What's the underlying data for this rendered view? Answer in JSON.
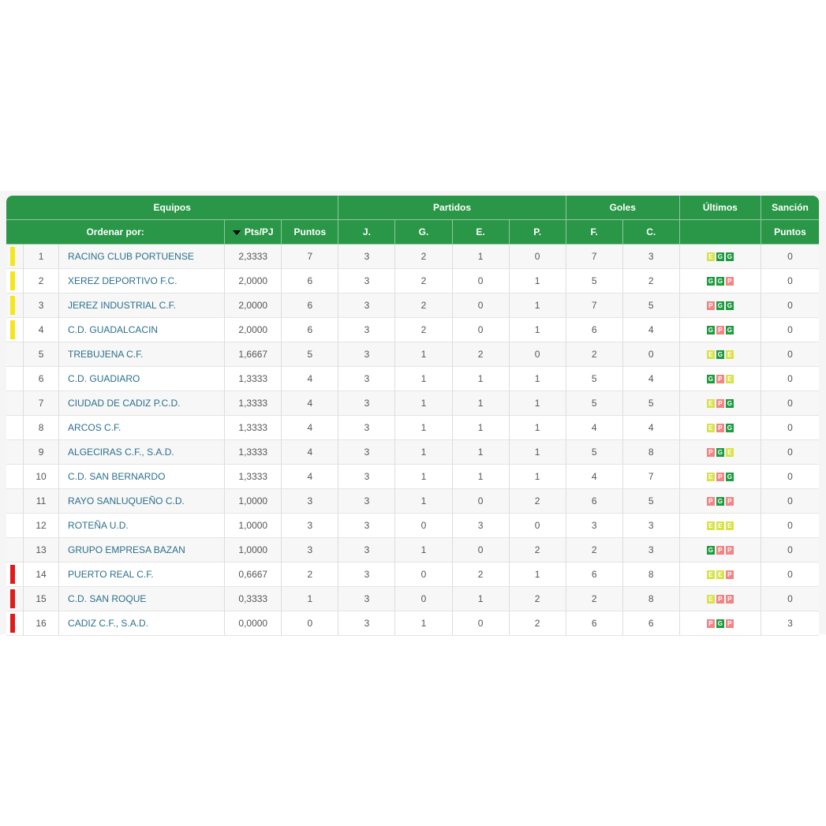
{
  "colors": {
    "header_bg": "#2a9647",
    "team_link": "#2b6f8c",
    "status_top": "#f5e51c",
    "status_bottom": "#e01b1b",
    "result_G": "#1e9a3f",
    "result_E": "#d8e24a",
    "result_P": "#f08585"
  },
  "header": {
    "groups": {
      "equipos": "Equipos",
      "partidos": "Partidos",
      "goles": "Goles",
      "ultimos": "Últimos",
      "sancion": "Sanción"
    },
    "columns": {
      "ordenar": "Ordenar por:",
      "ptspj": "Pts/PJ",
      "puntos": "Puntos",
      "j": "J.",
      "g": "G.",
      "e": "E.",
      "p": "P.",
      "f": "F.",
      "c": "C.",
      "ultimos": "",
      "sancion_puntos": "Puntos"
    },
    "sort_icon": "caret-down-icon"
  },
  "rows": [
    {
      "pos": "1",
      "status": "top",
      "team": "RACING CLUB PORTUENSE",
      "ptspj": "2,3333",
      "pts": "7",
      "j": "3",
      "g": "2",
      "e": "1",
      "p": "0",
      "f": "7",
      "c": "3",
      "form": [
        "E",
        "G",
        "G"
      ],
      "sancion": "0"
    },
    {
      "pos": "2",
      "status": "top",
      "team": "XEREZ DEPORTIVO F.C.",
      "ptspj": "2,0000",
      "pts": "6",
      "j": "3",
      "g": "2",
      "e": "0",
      "p": "1",
      "f": "5",
      "c": "2",
      "form": [
        "G",
        "G",
        "P"
      ],
      "sancion": "0"
    },
    {
      "pos": "3",
      "status": "top",
      "team": "JEREZ INDUSTRIAL C.F.",
      "ptspj": "2,0000",
      "pts": "6",
      "j": "3",
      "g": "2",
      "e": "0",
      "p": "1",
      "f": "7",
      "c": "5",
      "form": [
        "P",
        "G",
        "G"
      ],
      "sancion": "0"
    },
    {
      "pos": "4",
      "status": "top",
      "team": "C.D. GUADALCACIN",
      "ptspj": "2,0000",
      "pts": "6",
      "j": "3",
      "g": "2",
      "e": "0",
      "p": "1",
      "f": "6",
      "c": "4",
      "form": [
        "G",
        "P",
        "G"
      ],
      "sancion": "0"
    },
    {
      "pos": "5",
      "status": "none",
      "team": "TREBUJENA C.F.",
      "ptspj": "1,6667",
      "pts": "5",
      "j": "3",
      "g": "1",
      "e": "2",
      "p": "0",
      "f": "2",
      "c": "0",
      "form": [
        "E",
        "G",
        "E"
      ],
      "sancion": "0"
    },
    {
      "pos": "6",
      "status": "none",
      "team": "C.D. GUADIARO",
      "ptspj": "1,3333",
      "pts": "4",
      "j": "3",
      "g": "1",
      "e": "1",
      "p": "1",
      "f": "5",
      "c": "4",
      "form": [
        "G",
        "P",
        "E"
      ],
      "sancion": "0"
    },
    {
      "pos": "7",
      "status": "none",
      "team": "CIUDAD DE CADIZ P.C.D.",
      "ptspj": "1,3333",
      "pts": "4",
      "j": "3",
      "g": "1",
      "e": "1",
      "p": "1",
      "f": "5",
      "c": "5",
      "form": [
        "E",
        "P",
        "G"
      ],
      "sancion": "0"
    },
    {
      "pos": "8",
      "status": "none",
      "team": "ARCOS C.F.",
      "ptspj": "1,3333",
      "pts": "4",
      "j": "3",
      "g": "1",
      "e": "1",
      "p": "1",
      "f": "4",
      "c": "4",
      "form": [
        "E",
        "P",
        "G"
      ],
      "sancion": "0"
    },
    {
      "pos": "9",
      "status": "none",
      "team": "ALGECIRAS C.F., S.A.D.",
      "ptspj": "1,3333",
      "pts": "4",
      "j": "3",
      "g": "1",
      "e": "1",
      "p": "1",
      "f": "5",
      "c": "8",
      "form": [
        "P",
        "G",
        "E"
      ],
      "sancion": "0"
    },
    {
      "pos": "10",
      "status": "none",
      "team": "C.D. SAN BERNARDO",
      "ptspj": "1,3333",
      "pts": "4",
      "j": "3",
      "g": "1",
      "e": "1",
      "p": "1",
      "f": "4",
      "c": "7",
      "form": [
        "E",
        "P",
        "G"
      ],
      "sancion": "0"
    },
    {
      "pos": "11",
      "status": "none",
      "team": "RAYO SANLUQUEÑO C.D.",
      "ptspj": "1,0000",
      "pts": "3",
      "j": "3",
      "g": "1",
      "e": "0",
      "p": "2",
      "f": "6",
      "c": "5",
      "form": [
        "P",
        "G",
        "P"
      ],
      "sancion": "0"
    },
    {
      "pos": "12",
      "status": "none",
      "team": "ROTEÑA U.D.",
      "ptspj": "1,0000",
      "pts": "3",
      "j": "3",
      "g": "0",
      "e": "3",
      "p": "0",
      "f": "3",
      "c": "3",
      "form": [
        "E",
        "E",
        "E"
      ],
      "sancion": "0"
    },
    {
      "pos": "13",
      "status": "none",
      "team": "GRUPO EMPRESA BAZAN",
      "ptspj": "1,0000",
      "pts": "3",
      "j": "3",
      "g": "1",
      "e": "0",
      "p": "2",
      "f": "2",
      "c": "3",
      "form": [
        "G",
        "P",
        "P"
      ],
      "sancion": "0"
    },
    {
      "pos": "14",
      "status": "bottom",
      "team": "PUERTO REAL C.F.",
      "ptspj": "0,6667",
      "pts": "2",
      "j": "3",
      "g": "0",
      "e": "2",
      "p": "1",
      "f": "6",
      "c": "8",
      "form": [
        "E",
        "E",
        "P"
      ],
      "sancion": "0"
    },
    {
      "pos": "15",
      "status": "bottom",
      "team": "C.D. SAN ROQUE",
      "ptspj": "0,3333",
      "pts": "1",
      "j": "3",
      "g": "0",
      "e": "1",
      "p": "2",
      "f": "2",
      "c": "8",
      "form": [
        "E",
        "P",
        "P"
      ],
      "sancion": "0"
    },
    {
      "pos": "16",
      "status": "bottom",
      "team": "CADIZ C.F., S.A.D.",
      "ptspj": "0,0000",
      "pts": "0",
      "j": "3",
      "g": "1",
      "e": "0",
      "p": "2",
      "f": "6",
      "c": "6",
      "form": [
        "P",
        "G",
        "P"
      ],
      "sancion": "3"
    }
  ]
}
